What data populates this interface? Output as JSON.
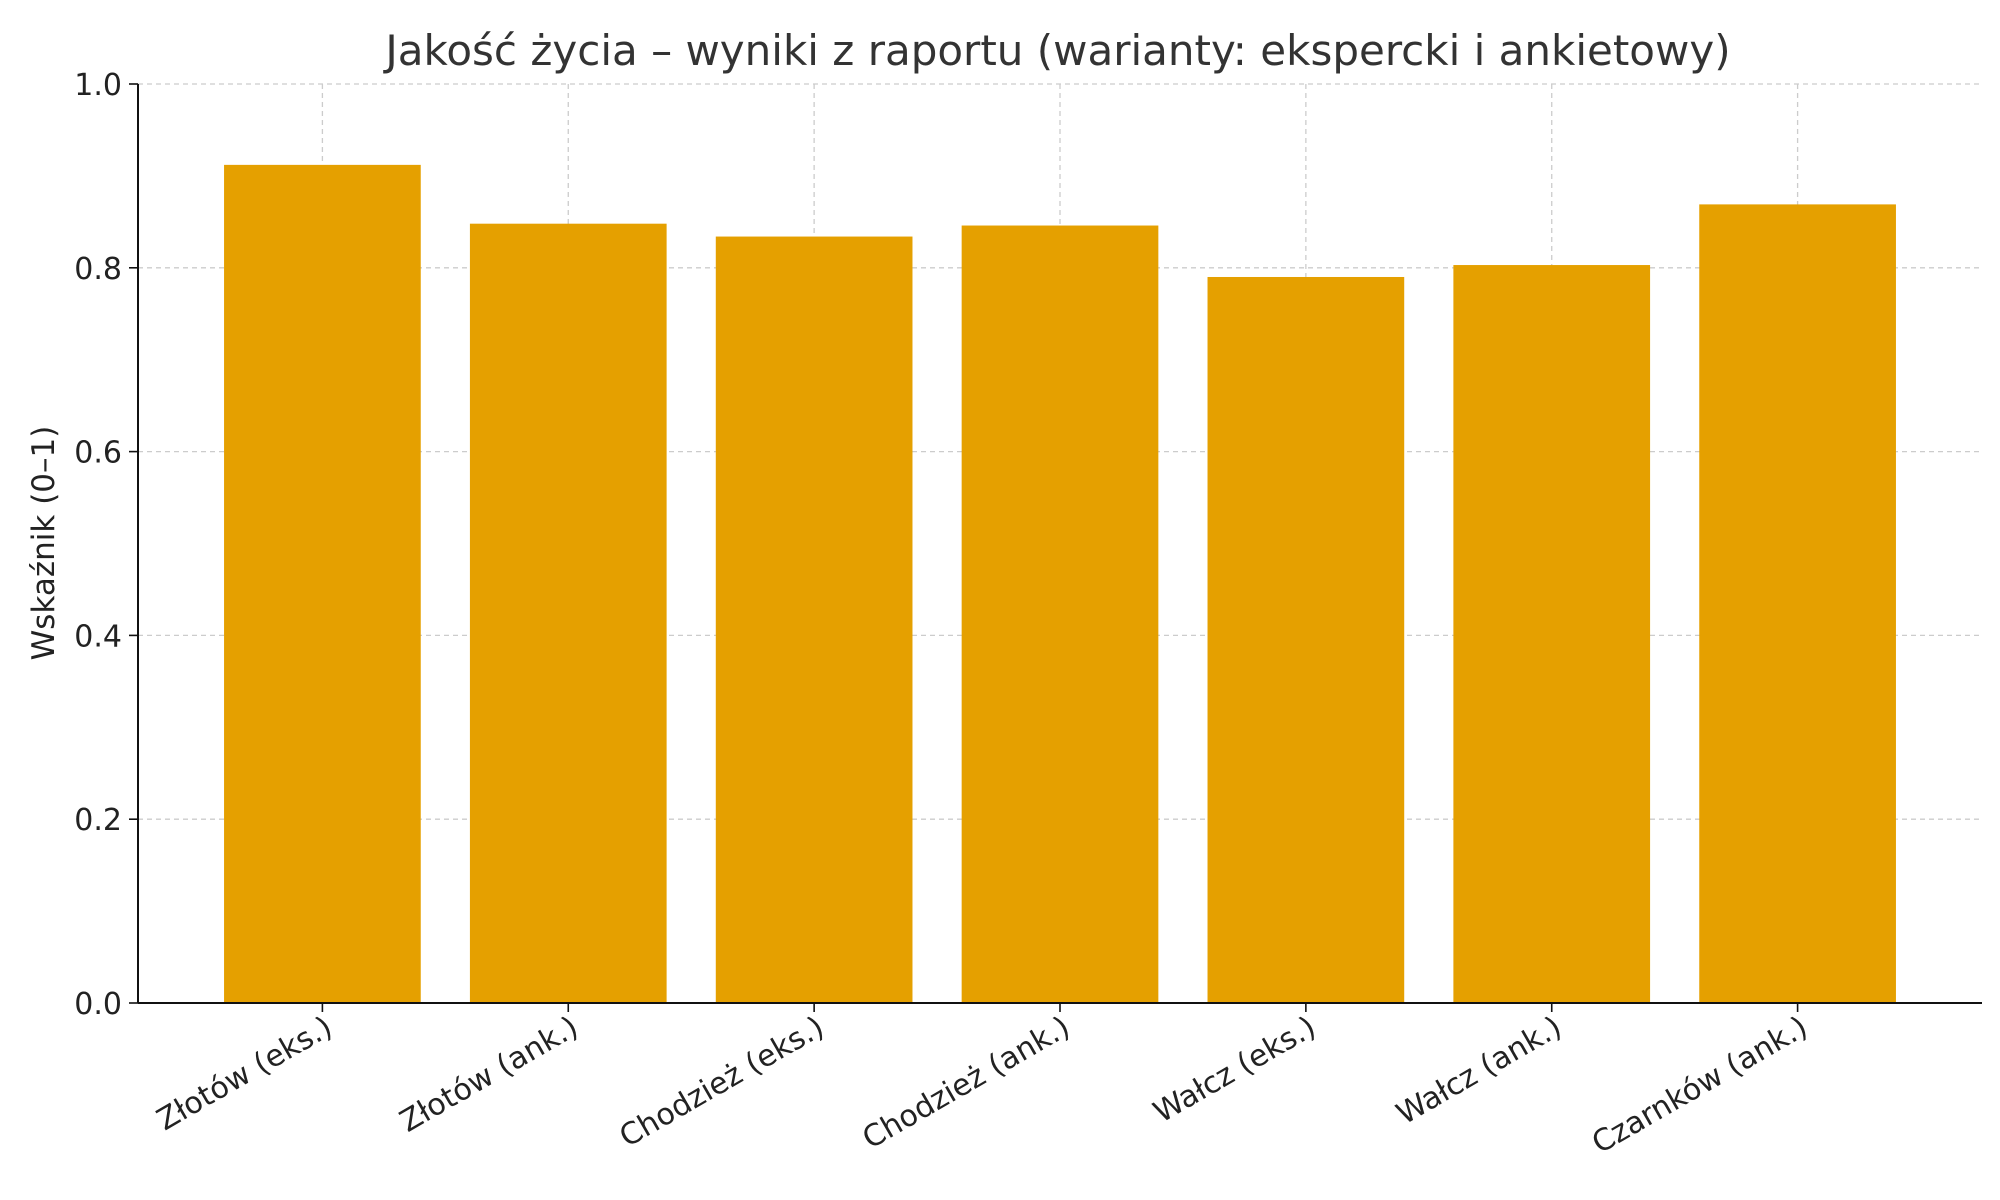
{
  "chart_data": {
    "type": "bar",
    "title": "Jakość życia – wyniki z raportu (warianty: ekspercki i ankietowy)",
    "xlabel": "",
    "ylabel": "Wskaźnik (0–1)",
    "categories": [
      "Złotów (eks.)",
      "Złotów (ank.)",
      "Chodzież (eks.)",
      "Chodzież (ank.)",
      "Wałcz (eks.)",
      "Wałcz (ank.)",
      "Czarnków (ank.)"
    ],
    "values": [
      0.912,
      0.848,
      0.834,
      0.846,
      0.79,
      0.803,
      0.869
    ],
    "ylim": [
      0,
      1.0
    ],
    "yticks": [
      "0.0",
      "0.2",
      "0.4",
      "0.6",
      "0.8",
      "1.0"
    ],
    "grid": true,
    "bar_color": "#E5A000"
  }
}
